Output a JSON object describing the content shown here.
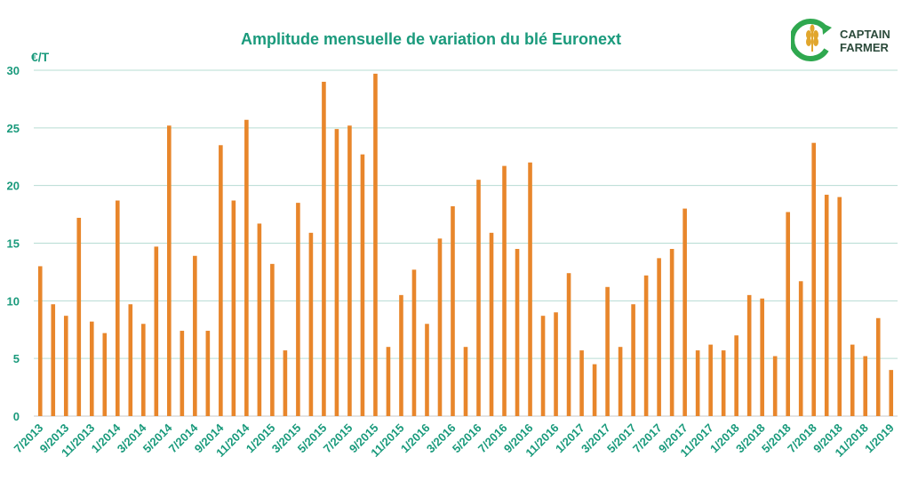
{
  "chart_data": {
    "type": "bar",
    "title": "Amplitude mensuelle de variation du blé Euronext",
    "ylabel": "€/T",
    "xlabel": "",
    "ylim": [
      0,
      30
    ],
    "yticks": [
      0,
      5,
      10,
      15,
      20,
      25,
      30
    ],
    "grid": true,
    "categories": [
      "7/2013",
      "8/2013",
      "9/2013",
      "10/2013",
      "11/2013",
      "12/2013",
      "1/2014",
      "2/2014",
      "3/2014",
      "4/2014",
      "5/2014",
      "6/2014",
      "7/2014",
      "8/2014",
      "9/2014",
      "10/2014",
      "11/2014",
      "12/2014",
      "1/2015",
      "2/2015",
      "3/2015",
      "4/2015",
      "5/2015",
      "6/2015",
      "7/2015",
      "8/2015",
      "9/2015",
      "10/2015",
      "11/2015",
      "12/2015",
      "1/2016",
      "2/2016",
      "3/2016",
      "4/2016",
      "5/2016",
      "6/2016",
      "7/2016",
      "8/2016",
      "9/2016",
      "10/2016",
      "11/2016",
      "12/2016",
      "1/2017",
      "2/2017",
      "3/2017",
      "4/2017",
      "5/2017",
      "6/2017",
      "7/2017",
      "8/2017",
      "9/2017",
      "10/2017",
      "11/2017",
      "12/2017",
      "1/2018",
      "2/2018",
      "3/2018",
      "4/2018",
      "5/2018",
      "6/2018",
      "7/2018",
      "8/2018",
      "9/2018",
      "10/2018",
      "11/2018",
      "12/2018",
      "1/2019"
    ],
    "tick_labels": [
      "7/2013",
      "9/2013",
      "11/2013",
      "1/2014",
      "3/2014",
      "5/2014",
      "7/2014",
      "9/2014",
      "11/2014",
      "1/2015",
      "3/2015",
      "5/2015",
      "7/2015",
      "9/2015",
      "11/2015",
      "1/2016",
      "3/2016",
      "5/2016",
      "7/2016",
      "9/2016",
      "11/2016",
      "1/2017",
      "3/2017",
      "5/2017",
      "7/2017",
      "9/2017",
      "11/2017",
      "1/2018",
      "3/2018",
      "5/2018",
      "7/2018",
      "9/2018",
      "11/2018",
      "1/2019"
    ],
    "values": [
      13,
      9.7,
      8.7,
      17.2,
      8.2,
      7.2,
      18.7,
      9.7,
      8,
      14.7,
      25.2,
      7.4,
      13.9,
      7.4,
      23.5,
      18.7,
      25.7,
      16.7,
      13.2,
      5.7,
      18.5,
      15.9,
      29,
      24.9,
      25.2,
      22.7,
      29.7,
      6,
      10.5,
      12.7,
      8,
      15.4,
      18.2,
      6,
      20.5,
      15.9,
      21.7,
      14.5,
      22,
      8.7,
      9,
      12.4,
      5.7,
      4.5,
      11.2,
      6,
      9.7,
      12.2,
      13.7,
      14.5,
      18,
      5.7,
      6.2,
      5.7,
      7,
      10.5,
      10.2,
      5.2,
      17.7,
      11.7,
      23.7,
      19.2,
      19,
      6.2,
      5.2,
      8.5,
      4
    ],
    "colors": {
      "bar": "#e8862b",
      "title": "#1a9a7c",
      "axis_text": "#1a9a7c",
      "grid": "#b7dcd3",
      "axis_line": "#c9c9c9"
    }
  },
  "logo": {
    "line1": "CAPTAIN",
    "line2": "FARMER",
    "icon": "wheat-in-arrow-icon",
    "colors": {
      "green": "#2fa84f",
      "dark": "#2b4a3a",
      "gold": "#e1a62d"
    }
  }
}
